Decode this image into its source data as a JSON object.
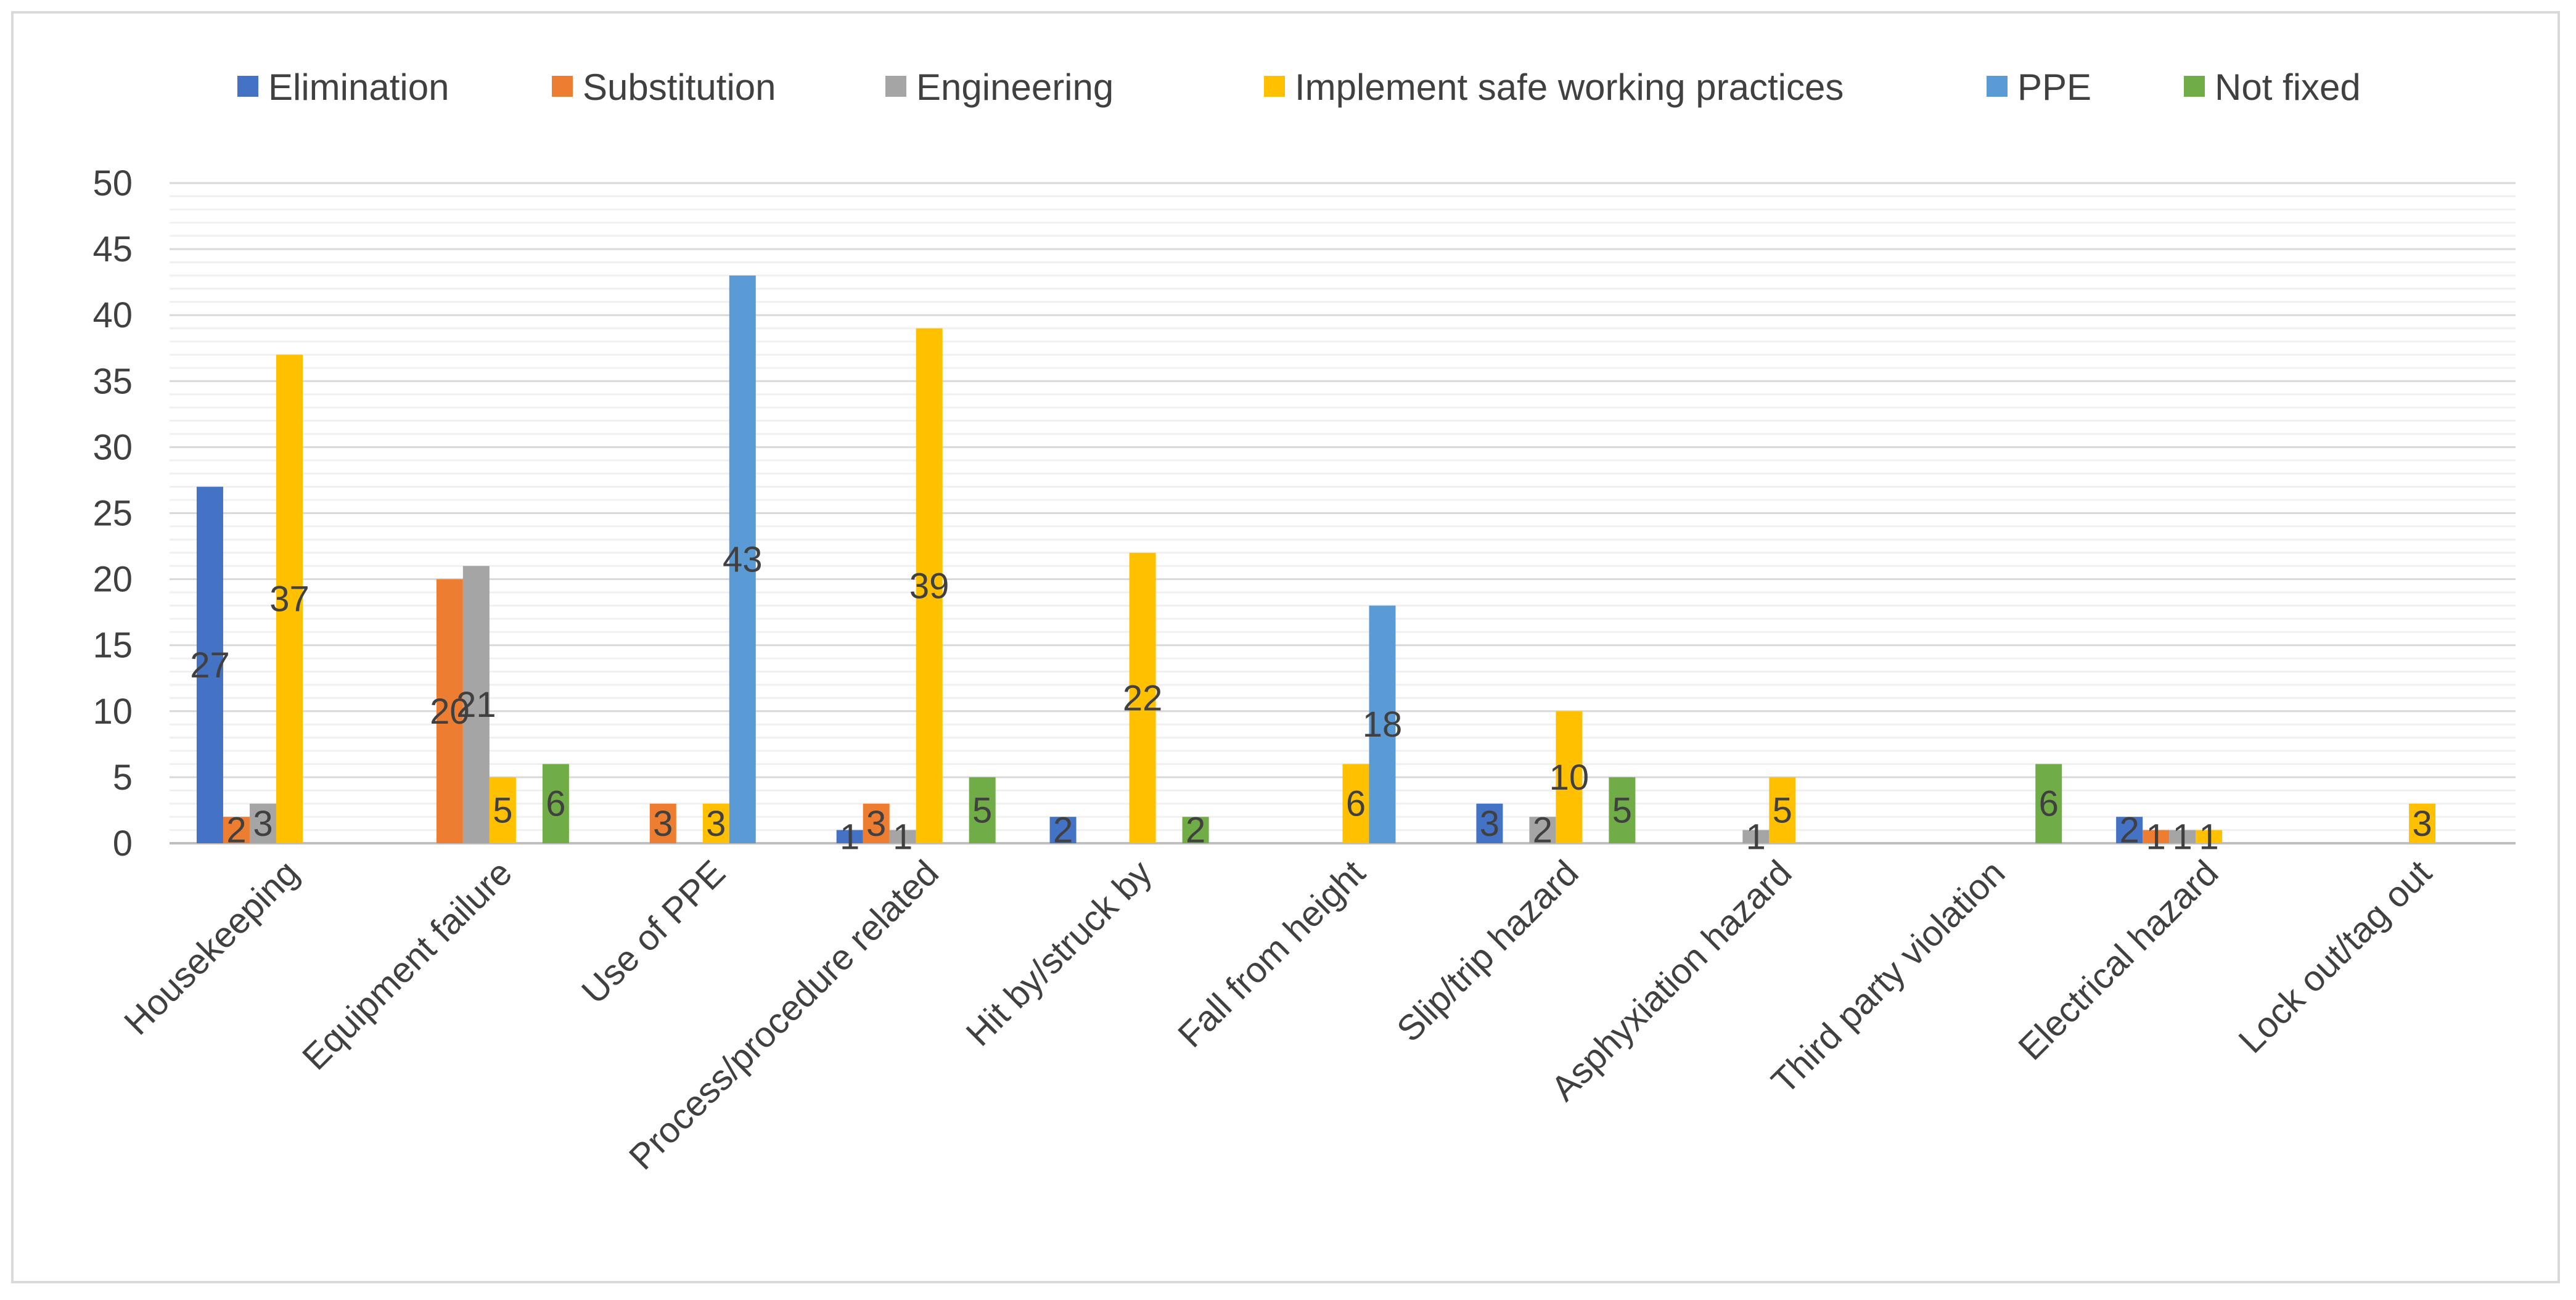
{
  "chart_data": {
    "type": "bar",
    "title": "",
    "xlabel": "",
    "ylabel": "",
    "ylim": [
      0,
      50
    ],
    "yticks": [
      "0",
      "5",
      "10",
      "15",
      "20",
      "25",
      "30",
      "35",
      "40",
      "45",
      "50"
    ],
    "grid": true,
    "legend_position": "top",
    "categories": [
      "Housekeeping",
      "Equipment failure",
      "Use of PPE",
      "Process/procedure related",
      "Hit by/struck by",
      "Fall from height",
      "Slip/trip hazard",
      "Asphyxiation hazard",
      "Third party violation",
      "Electrical hazard",
      "Lock out/tag out"
    ],
    "series": [
      {
        "name": "Elimination",
        "color": "#4472C4",
        "values": [
          27,
          null,
          null,
          1,
          2,
          null,
          3,
          null,
          null,
          2,
          null
        ]
      },
      {
        "name": "Substitution",
        "color": "#ED7D31",
        "values": [
          2,
          20,
          3,
          3,
          null,
          null,
          null,
          null,
          null,
          1,
          null
        ]
      },
      {
        "name": "Engineering",
        "color": "#A5A5A5",
        "values": [
          3,
          21,
          null,
          1,
          null,
          null,
          2,
          1,
          null,
          1,
          null
        ]
      },
      {
        "name": "Implement safe working practices",
        "color": "#FFC000",
        "values": [
          37,
          5,
          3,
          39,
          22,
          6,
          10,
          5,
          null,
          1,
          3
        ]
      },
      {
        "name": "PPE",
        "color": "#5B9BD5",
        "values": [
          null,
          null,
          43,
          null,
          null,
          18,
          null,
          null,
          null,
          null,
          null
        ]
      },
      {
        "name": "Not fixed",
        "color": "#70AD47",
        "values": [
          null,
          6,
          null,
          5,
          2,
          null,
          5,
          null,
          6,
          null,
          null
        ]
      }
    ]
  }
}
